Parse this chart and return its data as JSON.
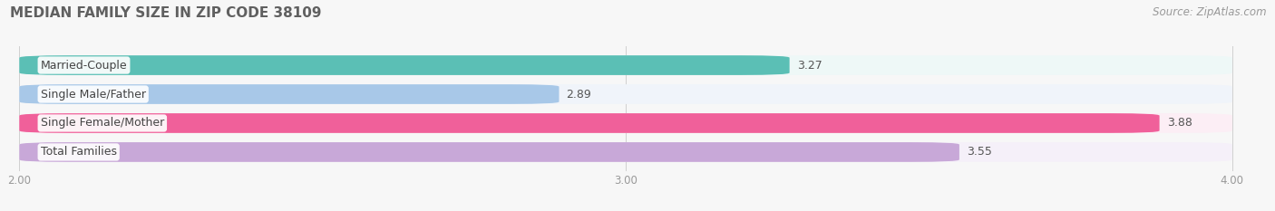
{
  "title": "MEDIAN FAMILY SIZE IN ZIP CODE 38109",
  "source": "Source: ZipAtlas.com",
  "categories": [
    "Married-Couple",
    "Single Male/Father",
    "Single Female/Mother",
    "Total Families"
  ],
  "values": [
    3.27,
    2.89,
    3.88,
    3.55
  ],
  "bar_colors": [
    "#5BBFB5",
    "#A8C8E8",
    "#F0609A",
    "#C8A8D8"
  ],
  "bar_bg_colors": [
    "#EEF8F7",
    "#F0F4FA",
    "#FCEEF5",
    "#F5F0F9"
  ],
  "xlim_min": 2.0,
  "xlim_max": 4.0,
  "xticks": [
    2.0,
    3.0,
    4.0
  ],
  "xtick_labels": [
    "2.00",
    "3.00",
    "4.00"
  ],
  "background_color": "#f7f7f7",
  "label_fontsize": 9.0,
  "value_fontsize": 9.0,
  "title_fontsize": 11,
  "source_fontsize": 8.5,
  "bar_height": 0.68,
  "bar_gap": 1.0,
  "rounding_size": 0.08,
  "value_label_color": "#555555",
  "category_label_color": "#444444"
}
